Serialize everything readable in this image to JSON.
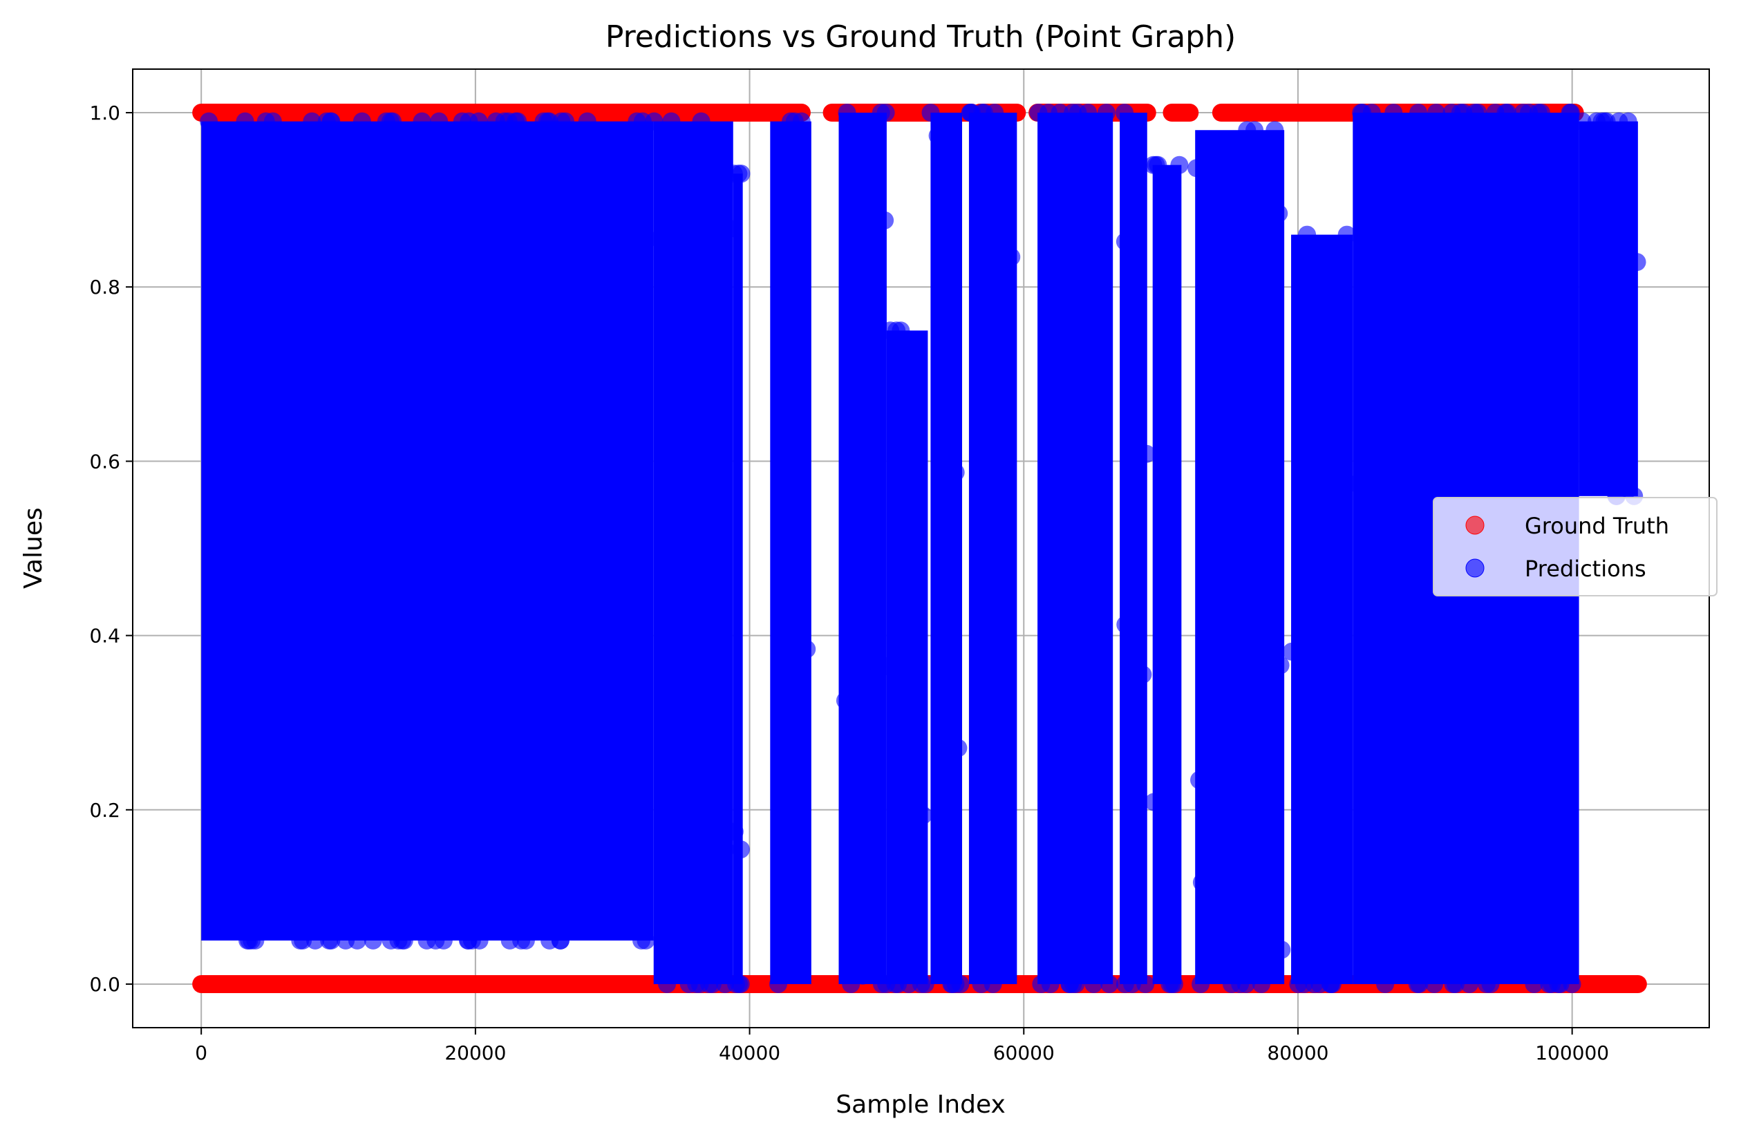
{
  "chart_data": {
    "type": "scatter",
    "title": "Predictions vs Ground Truth (Point Graph)",
    "xlabel": "Sample Index",
    "ylabel": "Values",
    "xlim": [
      -5000,
      110000
    ],
    "ylim": [
      -0.05,
      1.05
    ],
    "x_ticks": [
      0,
      20000,
      40000,
      60000,
      80000,
      100000
    ],
    "x_tick_labels": [
      "0",
      "20000",
      "40000",
      "60000",
      "80000",
      "100000"
    ],
    "y_ticks": [
      0.0,
      0.2,
      0.4,
      0.6,
      0.8,
      1.0
    ],
    "y_tick_labels": [
      "0.0",
      "0.2",
      "0.4",
      "0.6",
      "0.8",
      "1.0"
    ],
    "grid": true,
    "legend_position": "center-right",
    "n_samples": 104800,
    "series": [
      {
        "name": "Ground Truth",
        "color": "#ff0000",
        "alpha": 0.6,
        "values_binary": [
          0,
          1
        ],
        "label_1_segments": [
          [
            0,
            43800
          ],
          [
            46000,
            56200
          ],
          [
            56800,
            59500
          ],
          [
            61000,
            69000
          ],
          [
            70800,
            72100
          ],
          [
            74400,
            100200
          ]
        ],
        "label_0_segments": [
          [
            0,
            104800
          ]
        ]
      },
      {
        "name": "Predictions",
        "color": "#0000ff",
        "alpha": 0.6,
        "value_bands": [
          {
            "x": [
              0,
              33000
            ],
            "y": [
              0.05,
              0.99
            ]
          },
          {
            "x": [
              33000,
              38800
            ],
            "y": [
              0.0,
              0.99
            ]
          },
          {
            "x": [
              38800,
              39500
            ],
            "y": [
              0.0,
              0.93
            ]
          },
          {
            "x": [
              41500,
              44500
            ],
            "y": [
              0.0,
              0.99
            ]
          },
          {
            "x": [
              46500,
              50000
            ],
            "y": [
              0.0,
              1.0
            ]
          },
          {
            "x": [
              50000,
              53000
            ],
            "y": [
              0.0,
              0.75
            ]
          },
          {
            "x": [
              53200,
              55500
            ],
            "y": [
              0.0,
              1.0
            ]
          },
          {
            "x": [
              56000,
              59500
            ],
            "y": [
              0.0,
              1.0
            ]
          },
          {
            "x": [
              61000,
              66500
            ],
            "y": [
              0.0,
              1.0
            ]
          },
          {
            "x": [
              67000,
              69000
            ],
            "y": [
              0.0,
              1.0
            ]
          },
          {
            "x": [
              69400,
              71500
            ],
            "y": [
              0.0,
              0.94
            ]
          },
          {
            "x": [
              72500,
              79000
            ],
            "y": [
              0.0,
              0.98
            ]
          },
          {
            "x": [
              79500,
              84000
            ],
            "y": [
              0.0,
              0.86
            ]
          },
          {
            "x": [
              84000,
              100500
            ],
            "y": [
              0.0,
              1.0
            ]
          },
          {
            "x": [
              100500,
              104800
            ],
            "y": [
              0.56,
              0.99
            ]
          }
        ]
      }
    ]
  }
}
